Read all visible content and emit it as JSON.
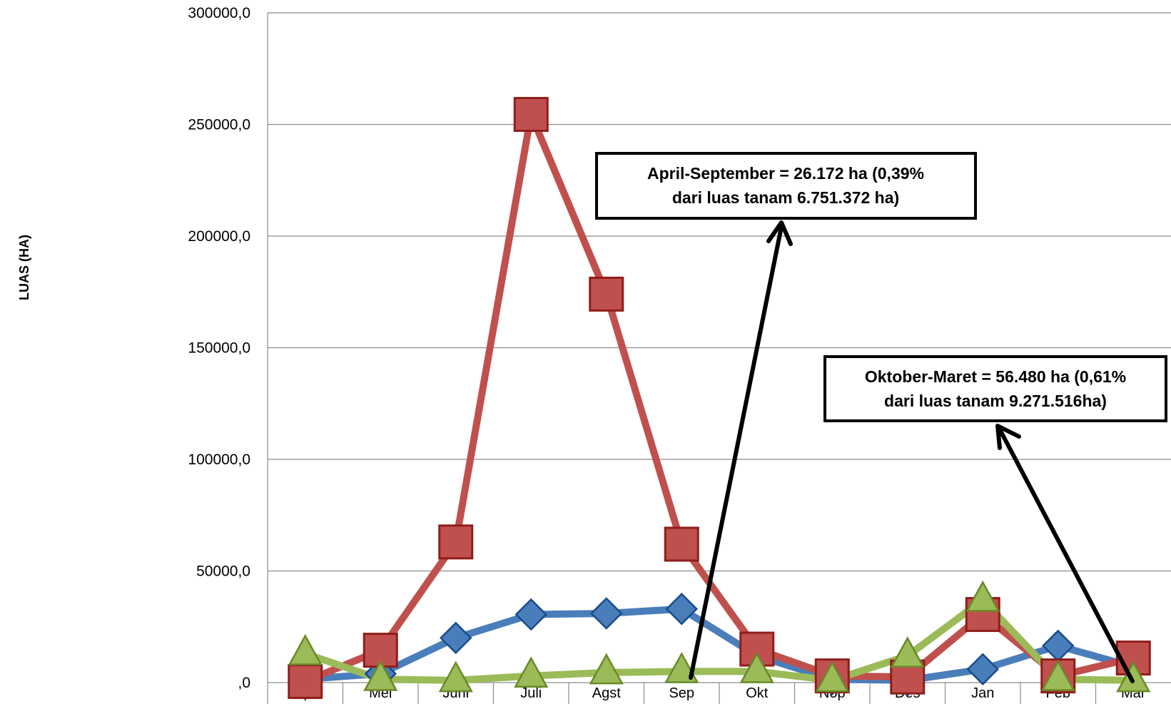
{
  "chart_data": {
    "type": "line",
    "title": "",
    "xlabel": "",
    "ylabel": "LUAS (HA)",
    "categories": [
      "Apr",
      "Mei",
      "Juni",
      "Juli",
      "Agst",
      "Sep",
      "Okt",
      "Nop",
      "Des",
      "Jan",
      "Feb",
      "Mar"
    ],
    "y_tick_labels": [
      "300000,0",
      "250000,0",
      "200000,0",
      "150000,0",
      "100000,0",
      "50000,0",
      ",0"
    ],
    "y_ticks": [
      300000,
      250000,
      200000,
      150000,
      100000,
      50000,
      0
    ],
    "ylim": [
      0,
      300000
    ],
    "grid": true,
    "legend": "none",
    "series": [
      {
        "color": "#4a7ebb",
        "marker": "diamond",
        "values": [
          1500,
          4000,
          20000,
          30500,
          31000,
          33000,
          12000,
          1500,
          1000,
          6000,
          16500,
          7000
        ]
      },
      {
        "color": "#c0504d",
        "marker": "square",
        "values": [
          500,
          14500,
          63000,
          254500,
          174000,
          62000,
          15000,
          3000,
          2500,
          30500,
          3000,
          11000
        ]
      },
      {
        "color": "#9bbb59",
        "marker": "triangle",
        "values": [
          13000,
          1500,
          1000,
          3000,
          4500,
          5000,
          5000,
          1000,
          12000,
          37000,
          1500,
          1000
        ]
      }
    ],
    "annotations": [
      {
        "lines": [
          "April-September = 26.172 ha (0,39%",
          "dari luas tanam 6.751.372 ha)"
        ]
      },
      {
        "lines": [
          "Oktober-Maret = 56.480 ha (0,61%",
          "dari luas tanam 9.271.516ha)"
        ]
      }
    ]
  }
}
